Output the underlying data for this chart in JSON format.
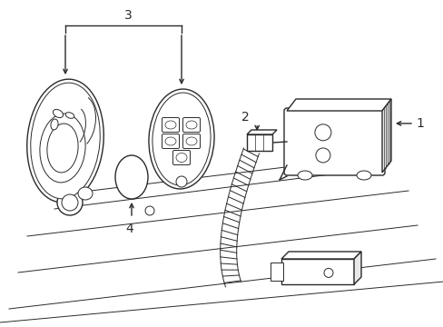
{
  "bg_color": "#ffffff",
  "line_color": "#2a2a2a",
  "lw": 1.0,
  "tlw": 0.7,
  "label_1": "1",
  "label_2": "2",
  "label_3": "3",
  "label_4": "4",
  "fig_width": 4.89,
  "fig_height": 3.6,
  "dpi": 100
}
